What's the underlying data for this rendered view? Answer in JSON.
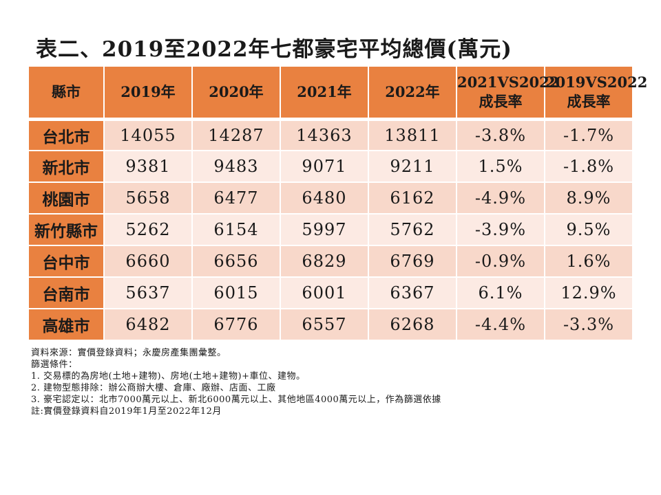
{
  "title": "表二、2019至2022年七都豪宅平均總價(萬元)",
  "colors": {
    "header_bg": "#E98140",
    "row_odd_bg": "#F8D8CA",
    "row_even_bg": "#FCEAE3",
    "text": "#1A1A1A"
  },
  "table": {
    "unit": "萬元",
    "columns": [
      "縣市",
      "2019年",
      "2020年",
      "2021年",
      "2022年",
      "2021VS2022\n成長率",
      "2019VS2022\n成長率"
    ],
    "rows": [
      {
        "city": "台北市",
        "y2019": "14055",
        "y2020": "14287",
        "y2021": "14363",
        "y2022": "13811",
        "growth_2021_2022": "-3.8%",
        "growth_2019_2022": "-1.7%"
      },
      {
        "city": "新北市",
        "y2019": "9381",
        "y2020": "9483",
        "y2021": "9071",
        "y2022": "9211",
        "growth_2021_2022": "1.5%",
        "growth_2019_2022": "-1.8%"
      },
      {
        "city": "桃園市",
        "y2019": "5658",
        "y2020": "6477",
        "y2021": "6480",
        "y2022": "6162",
        "growth_2021_2022": "-4.9%",
        "growth_2019_2022": "8.9%"
      },
      {
        "city": "新竹縣市",
        "y2019": "5262",
        "y2020": "6154",
        "y2021": "5997",
        "y2022": "5762",
        "growth_2021_2022": "-3.9%",
        "growth_2019_2022": "9.5%"
      },
      {
        "city": "台中市",
        "y2019": "6660",
        "y2020": "6656",
        "y2021": "6829",
        "y2022": "6769",
        "growth_2021_2022": "-0.9%",
        "growth_2019_2022": "1.6%"
      },
      {
        "city": "台南市",
        "y2019": "5637",
        "y2020": "6015",
        "y2021": "6001",
        "y2022": "6367",
        "growth_2021_2022": "6.1%",
        "growth_2019_2022": "12.9%"
      },
      {
        "city": "高雄市",
        "y2019": "6482",
        "y2020": "6776",
        "y2021": "6557",
        "y2022": "6268",
        "growth_2021_2022": "-4.4%",
        "growth_2019_2022": "-3.3%"
      }
    ]
  },
  "footnotes": [
    "資料來源：實價登錄資料；永慶房產集團彙整。",
    "篩選條件：",
    "1. 交易標的為房地(土地+建物)、房地(土地+建物)+車位、建物。",
    "2. 建物型態排除：辦公商辦大樓、倉庫、廠辦、店面、工廠",
    "3. 豪宅認定以：北市7000萬元以上、新北6000萬元以上、其他地區4000萬元以上，作為篩選依據",
    "註:實價登錄資料自2019年1月至2022年12月"
  ]
}
